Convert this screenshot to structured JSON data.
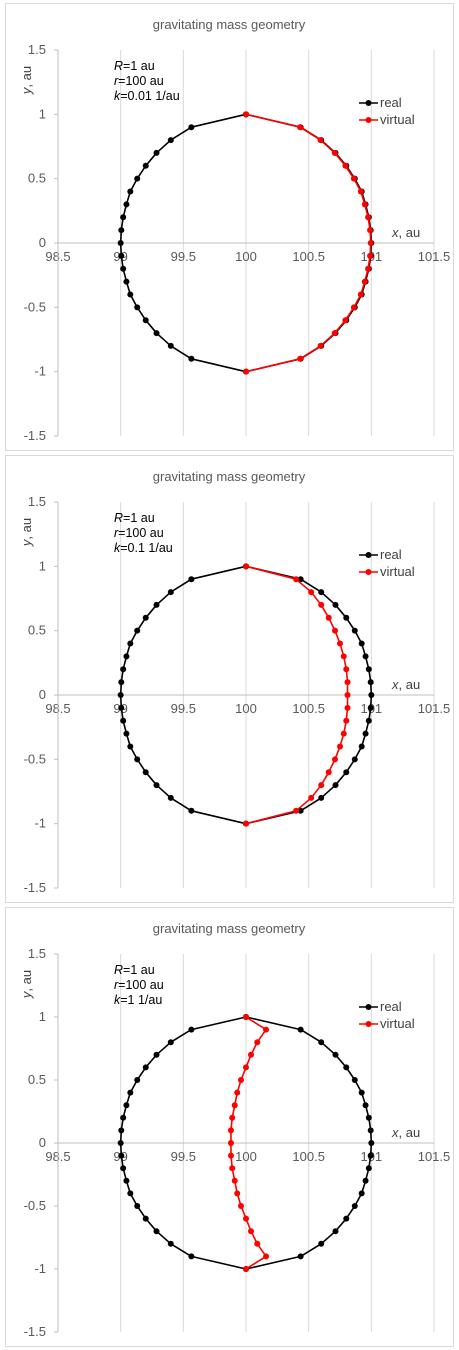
{
  "chart_data": [
    {
      "type": "scatter",
      "title": "gravitating mass geometry",
      "xlabel_var": "x",
      "xlabel_unit": ", au",
      "ylabel_var": "y",
      "ylabel_unit": ", au",
      "xlim": [
        98.5,
        101.5
      ],
      "ylim": [
        -1.5,
        1.5
      ],
      "x_ticks": [
        "98.5",
        "99",
        "99.5",
        "100",
        "100.5",
        "101",
        "101.5"
      ],
      "y_ticks": [
        "1.5",
        "1",
        "0.5",
        "0",
        "-0.5",
        "-1",
        "-1.5"
      ],
      "grid": true,
      "legend_position": "right",
      "annotation": {
        "R_var": "R",
        "R_val": "=1 au",
        "r_var": "r",
        "r_val": "=100 au",
        "k_var": "k",
        "k_val": "=0.01 1/au"
      },
      "series": [
        {
          "name": "real",
          "color": "#000000",
          "x": [
            100,
            99.564,
            99.4,
            99.286,
            99.2,
            99.132,
            99.077,
            99.046,
            99.02,
            99.005,
            99.0,
            99.005,
            99.02,
            99.046,
            99.077,
            99.132,
            99.2,
            99.286,
            99.4,
            99.564,
            100,
            100.436,
            100.6,
            100.714,
            100.8,
            100.868,
            100.923,
            100.954,
            100.98,
            100.995,
            101.0,
            100.995,
            100.98,
            100.954,
            100.923,
            100.868,
            100.8,
            100.714,
            100.6,
            100.436,
            100
          ],
          "y": [
            1,
            0.9,
            0.8,
            0.7,
            0.6,
            0.5,
            0.4,
            0.3,
            0.2,
            0.1,
            0,
            -0.1,
            -0.2,
            -0.3,
            -0.4,
            -0.5,
            -0.6,
            -0.7,
            -0.8,
            -0.9,
            -1,
            -0.9,
            -0.8,
            -0.7,
            -0.6,
            -0.5,
            -0.4,
            -0.3,
            -0.2,
            -0.1,
            0,
            0.1,
            0.2,
            0.3,
            0.4,
            0.5,
            0.6,
            0.7,
            0.8,
            0.9,
            1
          ]
        },
        {
          "name": "virtual",
          "color": "#ff0000",
          "x": [
            100,
            100.432,
            100.595,
            100.708,
            100.793,
            100.861,
            100.916,
            100.948,
            100.974,
            100.99,
            100.995,
            100.99,
            100.974,
            100.948,
            100.916,
            100.861,
            100.793,
            100.708,
            100.595,
            100.432,
            100
          ],
          "y": [
            1,
            0.9,
            0.8,
            0.7,
            0.6,
            0.5,
            0.4,
            0.3,
            0.2,
            0.1,
            0,
            -0.1,
            -0.2,
            -0.3,
            -0.4,
            -0.5,
            -0.6,
            -0.7,
            -0.8,
            -0.9,
            -1
          ]
        }
      ]
    },
    {
      "type": "scatter",
      "title": "gravitating mass geometry",
      "xlabel_var": "x",
      "xlabel_unit": ", au",
      "ylabel_var": "y",
      "ylabel_unit": ", au",
      "xlim": [
        98.5,
        101.5
      ],
      "ylim": [
        -1.5,
        1.5
      ],
      "x_ticks": [
        "98.5",
        "99",
        "99.5",
        "100",
        "100.5",
        "101",
        "101.5"
      ],
      "y_ticks": [
        "1.5",
        "1",
        "0.5",
        "0",
        "-0.5",
        "-1",
        "-1.5"
      ],
      "grid": true,
      "legend_position": "right",
      "annotation": {
        "R_var": "R",
        "R_val": "=1 au",
        "r_var": "r",
        "r_val": "=100 au",
        "k_var": "k",
        "k_val": "=0.1 1/au"
      },
      "series": [
        {
          "name": "real",
          "color": "#000000",
          "x": [
            100,
            99.564,
            99.4,
            99.286,
            99.2,
            99.132,
            99.077,
            99.046,
            99.02,
            99.005,
            99.0,
            99.005,
            99.02,
            99.046,
            99.077,
            99.132,
            99.2,
            99.286,
            99.4,
            99.564,
            100,
            100.436,
            100.6,
            100.714,
            100.8,
            100.868,
            100.923,
            100.954,
            100.98,
            100.995,
            101.0,
            100.995,
            100.98,
            100.954,
            100.923,
            100.868,
            100.8,
            100.714,
            100.6,
            100.436,
            100
          ],
          "y": [
            1,
            0.9,
            0.8,
            0.7,
            0.6,
            0.5,
            0.4,
            0.3,
            0.2,
            0.1,
            0,
            -0.1,
            -0.2,
            -0.3,
            -0.4,
            -0.5,
            -0.6,
            -0.7,
            -0.8,
            -0.9,
            -1,
            -0.9,
            -0.8,
            -0.7,
            -0.6,
            -0.5,
            -0.4,
            -0.3,
            -0.2,
            -0.1,
            0,
            0.1,
            0.2,
            0.3,
            0.4,
            0.5,
            0.6,
            0.7,
            0.8,
            0.9,
            1
          ]
        },
        {
          "name": "virtual",
          "color": "#ff0000",
          "x": [
            100,
            100.4,
            100.52,
            100.6,
            100.66,
            100.71,
            100.75,
            100.78,
            100.8,
            100.81,
            100.81,
            100.81,
            100.8,
            100.78,
            100.75,
            100.71,
            100.66,
            100.6,
            100.52,
            100.4,
            100
          ],
          "y": [
            1,
            0.9,
            0.8,
            0.7,
            0.6,
            0.5,
            0.4,
            0.3,
            0.2,
            0.1,
            0,
            -0.1,
            -0.2,
            -0.3,
            -0.4,
            -0.5,
            -0.6,
            -0.7,
            -0.8,
            -0.9,
            -1
          ]
        }
      ]
    },
    {
      "type": "scatter",
      "title": "gravitating mass geometry",
      "xlabel_var": "x",
      "xlabel_unit": ", au",
      "ylabel_var": "y",
      "ylabel_unit": ", au",
      "xlim": [
        98.5,
        101.5
      ],
      "ylim": [
        -1.5,
        1.5
      ],
      "x_ticks": [
        "98.5",
        "99",
        "99.5",
        "100",
        "100.5",
        "101",
        "101.5"
      ],
      "y_ticks": [
        "1.5",
        "1",
        "0.5",
        "0",
        "-0.5",
        "-1",
        "-1.5"
      ],
      "grid": true,
      "legend_position": "right",
      "annotation": {
        "R_var": "R",
        "R_val": "=1 au",
        "r_var": "r",
        "r_val": "=100 au",
        "k_var": "k",
        "k_val": "=1 1/au"
      },
      "series": [
        {
          "name": "real",
          "color": "#000000",
          "x": [
            100,
            99.564,
            99.4,
            99.286,
            99.2,
            99.132,
            99.077,
            99.046,
            99.02,
            99.005,
            99.0,
            99.005,
            99.02,
            99.046,
            99.077,
            99.132,
            99.2,
            99.286,
            99.4,
            99.564,
            100,
            100.436,
            100.6,
            100.714,
            100.8,
            100.868,
            100.923,
            100.954,
            100.98,
            100.995,
            101.0,
            100.995,
            100.98,
            100.954,
            100.923,
            100.868,
            100.8,
            100.714,
            100.6,
            100.436,
            100
          ],
          "y": [
            1,
            0.9,
            0.8,
            0.7,
            0.6,
            0.5,
            0.4,
            0.3,
            0.2,
            0.1,
            0,
            -0.1,
            -0.2,
            -0.3,
            -0.4,
            -0.5,
            -0.6,
            -0.7,
            -0.8,
            -0.9,
            -1,
            -0.9,
            -0.8,
            -0.7,
            -0.6,
            -0.5,
            -0.4,
            -0.3,
            -0.2,
            -0.1,
            0,
            0.1,
            0.2,
            0.3,
            0.4,
            0.5,
            0.6,
            0.7,
            0.8,
            0.9,
            1
          ]
        },
        {
          "name": "virtual",
          "color": "#ff0000",
          "x": [
            100,
            100.16,
            100.09,
            100.04,
            100.0,
            99.96,
            99.93,
            99.91,
            99.89,
            99.88,
            99.88,
            99.88,
            99.89,
            99.91,
            99.93,
            99.96,
            100.0,
            100.04,
            100.09,
            100.16,
            100
          ],
          "y": [
            1,
            0.9,
            0.8,
            0.7,
            0.6,
            0.5,
            0.4,
            0.3,
            0.2,
            0.1,
            0,
            -0.1,
            -0.2,
            -0.3,
            -0.4,
            -0.5,
            -0.6,
            -0.7,
            -0.8,
            -0.9,
            -1
          ]
        }
      ]
    }
  ]
}
